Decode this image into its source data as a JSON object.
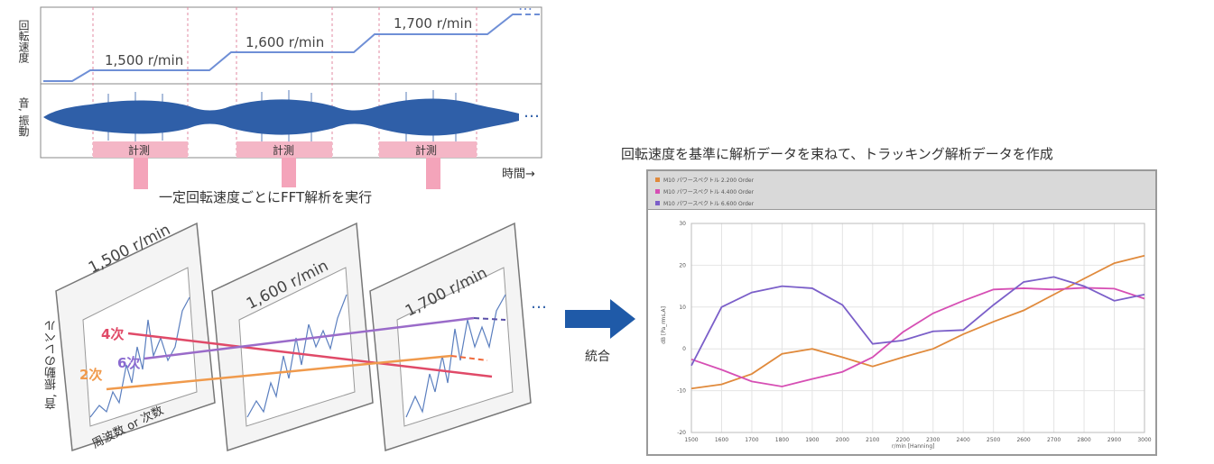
{
  "top_panel": {
    "y_label_speed": "回転速度",
    "y_label_signal": "音, 振動",
    "speed_labels": [
      "1,500 r/min",
      "1,600 r/min",
      "1,700 r/min"
    ],
    "measure_label": "計測",
    "time_label": "時間→",
    "continuation": "…"
  },
  "fft_caption": "一定回転速度ごとにFFT解析を実行",
  "spectra": {
    "panels": [
      "1,500 r/min",
      "1,600 r/min",
      "1,700 r/min"
    ],
    "orders": [
      "4次",
      "6次",
      "2次"
    ],
    "axis_y": "音, 振動のレベル",
    "axis_x": "周波数 or 次数",
    "continuation": "…"
  },
  "merge_label": "統合",
  "tracking_caption": "回転速度を基準に解析データを束ねて、トラッキング解析データを作成",
  "tracking_chart": {
    "legend": [
      {
        "name": "M10 パワースペクトル 2.200 Order",
        "color": "#e08a3c"
      },
      {
        "name": "M10 パワースペクトル 4.400 Order",
        "color": "#d64fb4"
      },
      {
        "name": "M10 パワースペクトル 6.600 Order",
        "color": "#7b5fc9"
      }
    ],
    "ylabel": "dB [Pa_rms,A]",
    "xlabel": "r/min [Hanning]"
  },
  "chart_data": {
    "type": "line",
    "x": [
      1500,
      1600,
      1700,
      1800,
      1900,
      2000,
      2100,
      2200,
      2300,
      2400,
      2500,
      2600,
      2700,
      2800,
      2900,
      3000
    ],
    "series": [
      {
        "name": "M10 パワースペクトル 2.200 Order",
        "color": "#e08a3c",
        "values": [
          -9.5,
          -8.5,
          -6,
          -1.2,
          0,
          -2,
          -4.2,
          -2,
          0,
          3.5,
          6.5,
          9.2,
          13,
          16.8,
          20.5,
          22.3
        ]
      },
      {
        "name": "M10 パワースペクトル 4.400 Order",
        "color": "#d64fb4",
        "values": [
          -2.5,
          -5,
          -7.8,
          -9,
          -7.2,
          -5.5,
          -2,
          4,
          8.5,
          11.5,
          14.2,
          14.5,
          14.2,
          14.6,
          14.4,
          12
        ]
      },
      {
        "name": "M10 パワースペクトル 6.600 Order",
        "color": "#7b5fc9",
        "values": [
          -4,
          10,
          13.5,
          15,
          14.5,
          10.5,
          1.2,
          2,
          4.2,
          4.5,
          10.5,
          16,
          17.2,
          15,
          11.5,
          13
        ]
      }
    ],
    "xlim": [
      1500,
      3000
    ],
    "ylim": [
      -20,
      30
    ],
    "yticks": [
      -20,
      -10,
      0,
      10,
      20,
      30
    ],
    "xticks": [
      1500,
      1600,
      1700,
      1800,
      1900,
      2000,
      2100,
      2200,
      2300,
      2400,
      2500,
      2600,
      2700,
      2800,
      2900,
      3000
    ],
    "grid": true,
    "legend_position": "top"
  }
}
